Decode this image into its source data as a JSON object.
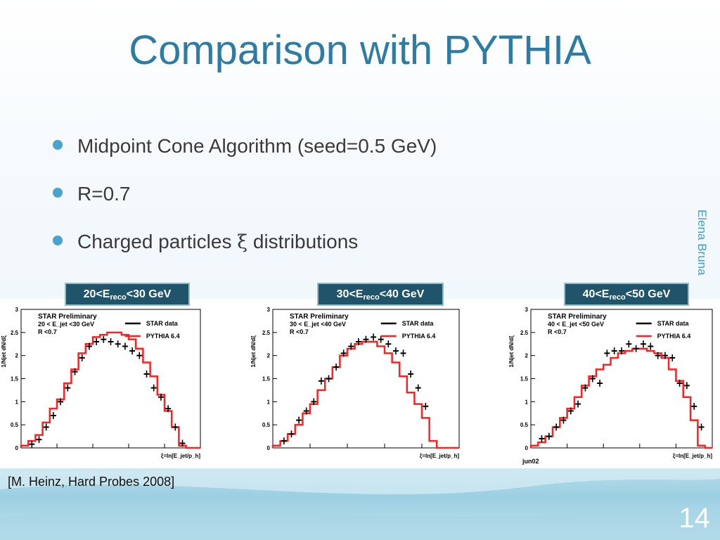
{
  "slide": {
    "title": "Comparison with PYTHIA",
    "bullets": [
      {
        "before": "Midpoint Cone Algorithm (seed=0.5 GeV)",
        "symbol": "",
        "after": ""
      },
      {
        "before": "R=0.7",
        "symbol": "",
        "after": ""
      },
      {
        "before": "Charged particles ",
        "symbol": "ξ",
        "after": " distributions"
      }
    ],
    "side_author": "Elena Bruna",
    "reference": "[M. Heinz, Hard Probes 2008]",
    "page_number": "14"
  },
  "colors": {
    "title": "#2e7ba3",
    "badge": "#20546b",
    "pythia": "#ff2020",
    "star": "#000000",
    "bullet_dot": "#4aa3cc"
  },
  "badges": [
    {
      "lo": "20<E",
      "sub": "reco",
      "hi": "<30 GeV"
    },
    {
      "lo": "30<E",
      "sub": "reco",
      "hi": "<40 GeV"
    },
    {
      "lo": "40<E",
      "sub": "reco",
      "hi": "<50 GeV"
    }
  ],
  "chart_data": [
    {
      "type": "line",
      "ylabel": "1/Njet dN/dξ",
      "xlabel": "ξ=ln[E_jet/p_h]",
      "yticks": [
        "0",
        "0.5",
        "1",
        "1.5",
        "2",
        "2.5",
        "3"
      ],
      "ylim": [
        0,
        3
      ],
      "xlim": [
        0,
        5
      ],
      "legend_header": [
        "STAR Preliminary",
        "20 < E_jet <30 GeV",
        "R <0.7"
      ],
      "legend_entries": [
        "STAR data",
        "PYTHIA 6.4"
      ],
      "footer": "",
      "series": [
        {
          "name": "PYTHIA 6.4",
          "x": [
            0.1,
            0.3,
            0.5,
            0.7,
            0.9,
            1.1,
            1.3,
            1.5,
            1.7,
            1.9,
            2.1,
            2.3,
            2.5,
            2.7,
            2.9,
            3.1,
            3.3,
            3.5,
            3.7,
            3.9,
            4.1,
            4.3,
            4.5,
            4.7,
            4.9
          ],
          "values": [
            0.05,
            0.15,
            0.28,
            0.55,
            0.85,
            1.05,
            1.4,
            1.7,
            2.05,
            2.25,
            2.4,
            2.45,
            2.5,
            2.5,
            2.45,
            2.35,
            2.15,
            1.85,
            1.55,
            1.15,
            0.8,
            0.45,
            0.05,
            0.0,
            0.0
          ]
        },
        {
          "name": "STAR data",
          "x": [
            0.3,
            0.5,
            0.7,
            0.9,
            1.1,
            1.3,
            1.5,
            1.7,
            1.9,
            2.1,
            2.3,
            2.5,
            2.7,
            2.9,
            3.1,
            3.3,
            3.5,
            3.7,
            3.9,
            4.1,
            4.3,
            4.5
          ],
          "values": [
            0.08,
            0.18,
            0.45,
            0.7,
            1.0,
            1.3,
            1.65,
            1.95,
            2.2,
            2.3,
            2.35,
            2.3,
            2.25,
            2.2,
            2.1,
            2.0,
            1.6,
            1.3,
            1.1,
            0.85,
            0.45,
            0.1
          ]
        }
      ]
    },
    {
      "type": "line",
      "ylabel": "1/Njet dN/dξ",
      "xlabel": "ξ=ln[E_jet/p_h]",
      "yticks": [
        "0",
        "0.5",
        "1",
        "1.5",
        "2",
        "2.5",
        "3"
      ],
      "ylim": [
        0,
        3
      ],
      "xlim": [
        0,
        5
      ],
      "legend_header": [
        "STAR Preliminary",
        "30 < E_jet <40 GeV",
        "R <0.7"
      ],
      "legend_entries": [
        "STAR data",
        "PYTHIA 6.4"
      ],
      "footer": "",
      "series": [
        {
          "name": "PYTHIA 6.4",
          "x": [
            0.1,
            0.3,
            0.5,
            0.7,
            0.9,
            1.1,
            1.3,
            1.5,
            1.7,
            1.9,
            2.1,
            2.3,
            2.5,
            2.7,
            2.9,
            3.1,
            3.3,
            3.5,
            3.7,
            3.9,
            4.1,
            4.3,
            4.5,
            4.7,
            4.9
          ],
          "values": [
            0.05,
            0.15,
            0.3,
            0.5,
            0.75,
            0.95,
            1.25,
            1.5,
            1.75,
            2.0,
            2.15,
            2.25,
            2.3,
            2.3,
            2.2,
            2.05,
            1.85,
            1.55,
            1.2,
            0.95,
            0.65,
            0.15,
            0.0,
            0.0,
            0.0
          ]
        },
        {
          "name": "STAR data",
          "x": [
            0.3,
            0.5,
            0.7,
            0.9,
            1.1,
            1.3,
            1.5,
            1.7,
            1.9,
            2.1,
            2.3,
            2.5,
            2.7,
            2.9,
            3.1,
            3.3,
            3.5,
            3.7,
            3.9,
            4.1
          ],
          "values": [
            0.15,
            0.3,
            0.6,
            0.8,
            1.0,
            1.45,
            1.5,
            1.75,
            2.05,
            2.2,
            2.3,
            2.35,
            2.4,
            2.35,
            2.25,
            2.1,
            2.05,
            1.6,
            1.3,
            0.9
          ]
        }
      ]
    },
    {
      "type": "line",
      "ylabel": "1/Njet dN/dξ",
      "xlabel": "ξ=ln[E_jet/p_h]",
      "yticks": [
        "0",
        "0.5",
        "1",
        "1.5",
        "2",
        "2.5",
        "3"
      ],
      "ylim": [
        0,
        3
      ],
      "xlim": [
        0,
        5
      ],
      "legend_header": [
        "STAR Preliminary",
        "40 < E_jet <50 GeV",
        "R <0.7"
      ],
      "legend_entries": [
        "STAR data",
        "PYTHIA 6.4"
      ],
      "footer": "jun02",
      "series": [
        {
          "name": "PYTHIA 6.4",
          "x": [
            0.1,
            0.3,
            0.5,
            0.7,
            0.9,
            1.1,
            1.3,
            1.5,
            1.7,
            1.9,
            2.1,
            2.3,
            2.5,
            2.7,
            2.9,
            3.1,
            3.3,
            3.5,
            3.7,
            3.9,
            4.1,
            4.3,
            4.5,
            4.7,
            4.9
          ],
          "values": [
            0.05,
            0.12,
            0.25,
            0.45,
            0.65,
            0.85,
            1.1,
            1.35,
            1.55,
            1.7,
            1.8,
            1.95,
            2.05,
            2.1,
            2.15,
            2.15,
            2.1,
            2.05,
            1.95,
            1.7,
            1.45,
            1.1,
            0.6,
            0.05,
            0.0
          ]
        },
        {
          "name": "STAR data",
          "x": [
            0.3,
            0.5,
            0.7,
            0.9,
            1.1,
            1.3,
            1.5,
            1.7,
            1.9,
            2.1,
            2.3,
            2.5,
            2.7,
            2.9,
            3.1,
            3.3,
            3.5,
            3.7,
            3.9,
            4.1,
            4.3,
            4.5,
            4.7
          ],
          "values": [
            0.2,
            0.25,
            0.45,
            0.6,
            0.8,
            0.95,
            1.3,
            1.5,
            1.4,
            2.05,
            2.1,
            2.1,
            2.25,
            2.15,
            2.25,
            2.2,
            2.0,
            2.0,
            1.95,
            1.4,
            1.35,
            0.9,
            0.45
          ]
        }
      ]
    }
  ]
}
